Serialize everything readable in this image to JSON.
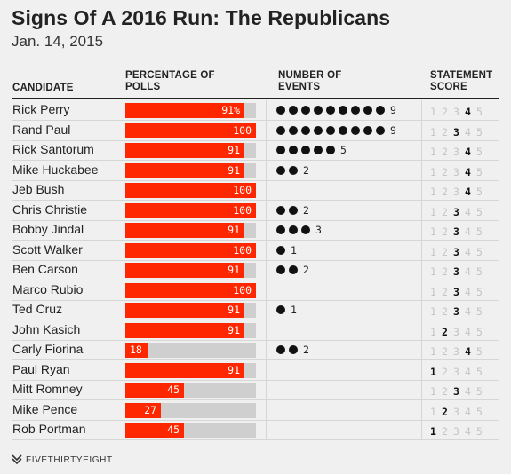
{
  "title": "Signs Of A 2016 Run: The Republicans",
  "subtitle": "Jan. 14, 2015",
  "headers": {
    "candidate": "CANDIDATE",
    "polls_1": "PERCENTAGE OF",
    "polls_2": "POLLS",
    "events_1": "NUMBER OF",
    "events_2": "EVENTS",
    "score_1": "STATEMENT",
    "score_2": "SCORE"
  },
  "score_scale": [
    "1",
    "2",
    "3",
    "4",
    "5"
  ],
  "colors": {
    "bar": "#ff2700",
    "bar_bg": "#cfcfcf",
    "dot": "#111111",
    "score_off": "#c4c4c4"
  },
  "footer": "FIVETHIRTYEIGHT",
  "chart_data": {
    "type": "table",
    "columns": [
      "CANDIDATE",
      "PERCENTAGE OF POLLS",
      "NUMBER OF EVENTS",
      "STATEMENT SCORE"
    ],
    "rows": [
      {
        "candidate": "Rick Perry",
        "polls": 91,
        "polls_label": "91%",
        "events": 9,
        "score": 4
      },
      {
        "candidate": "Rand Paul",
        "polls": 100,
        "polls_label": "100",
        "events": 9,
        "score": 3
      },
      {
        "candidate": "Rick Santorum",
        "polls": 91,
        "polls_label": "91",
        "events": 5,
        "score": 4
      },
      {
        "candidate": "Mike Huckabee",
        "polls": 91,
        "polls_label": "91",
        "events": 2,
        "score": 4
      },
      {
        "candidate": "Jeb Bush",
        "polls": 100,
        "polls_label": "100",
        "events": null,
        "score": 4
      },
      {
        "candidate": "Chris Christie",
        "polls": 100,
        "polls_label": "100",
        "events": 2,
        "score": 3
      },
      {
        "candidate": "Bobby Jindal",
        "polls": 91,
        "polls_label": "91",
        "events": 3,
        "score": 3
      },
      {
        "candidate": "Scott Walker",
        "polls": 100,
        "polls_label": "100",
        "events": 1,
        "score": 3
      },
      {
        "candidate": "Ben Carson",
        "polls": 91,
        "polls_label": "91",
        "events": 2,
        "score": 3
      },
      {
        "candidate": "Marco Rubio",
        "polls": 100,
        "polls_label": "100",
        "events": null,
        "score": 3
      },
      {
        "candidate": "Ted Cruz",
        "polls": 91,
        "polls_label": "91",
        "events": 1,
        "score": 3
      },
      {
        "candidate": "John Kasich",
        "polls": 91,
        "polls_label": "91",
        "events": null,
        "score": 2
      },
      {
        "candidate": "Carly Fiorina",
        "polls": 18,
        "polls_label": "18",
        "events": 2,
        "score": 4
      },
      {
        "candidate": "Paul Ryan",
        "polls": 91,
        "polls_label": "91",
        "events": null,
        "score": 1
      },
      {
        "candidate": "Mitt Romney",
        "polls": 45,
        "polls_label": "45",
        "events": null,
        "score": 3
      },
      {
        "candidate": "Mike Pence",
        "polls": 27,
        "polls_label": "27",
        "events": null,
        "score": 2
      },
      {
        "candidate": "Rob Portman",
        "polls": 45,
        "polls_label": "45",
        "events": null,
        "score": 1
      }
    ]
  }
}
